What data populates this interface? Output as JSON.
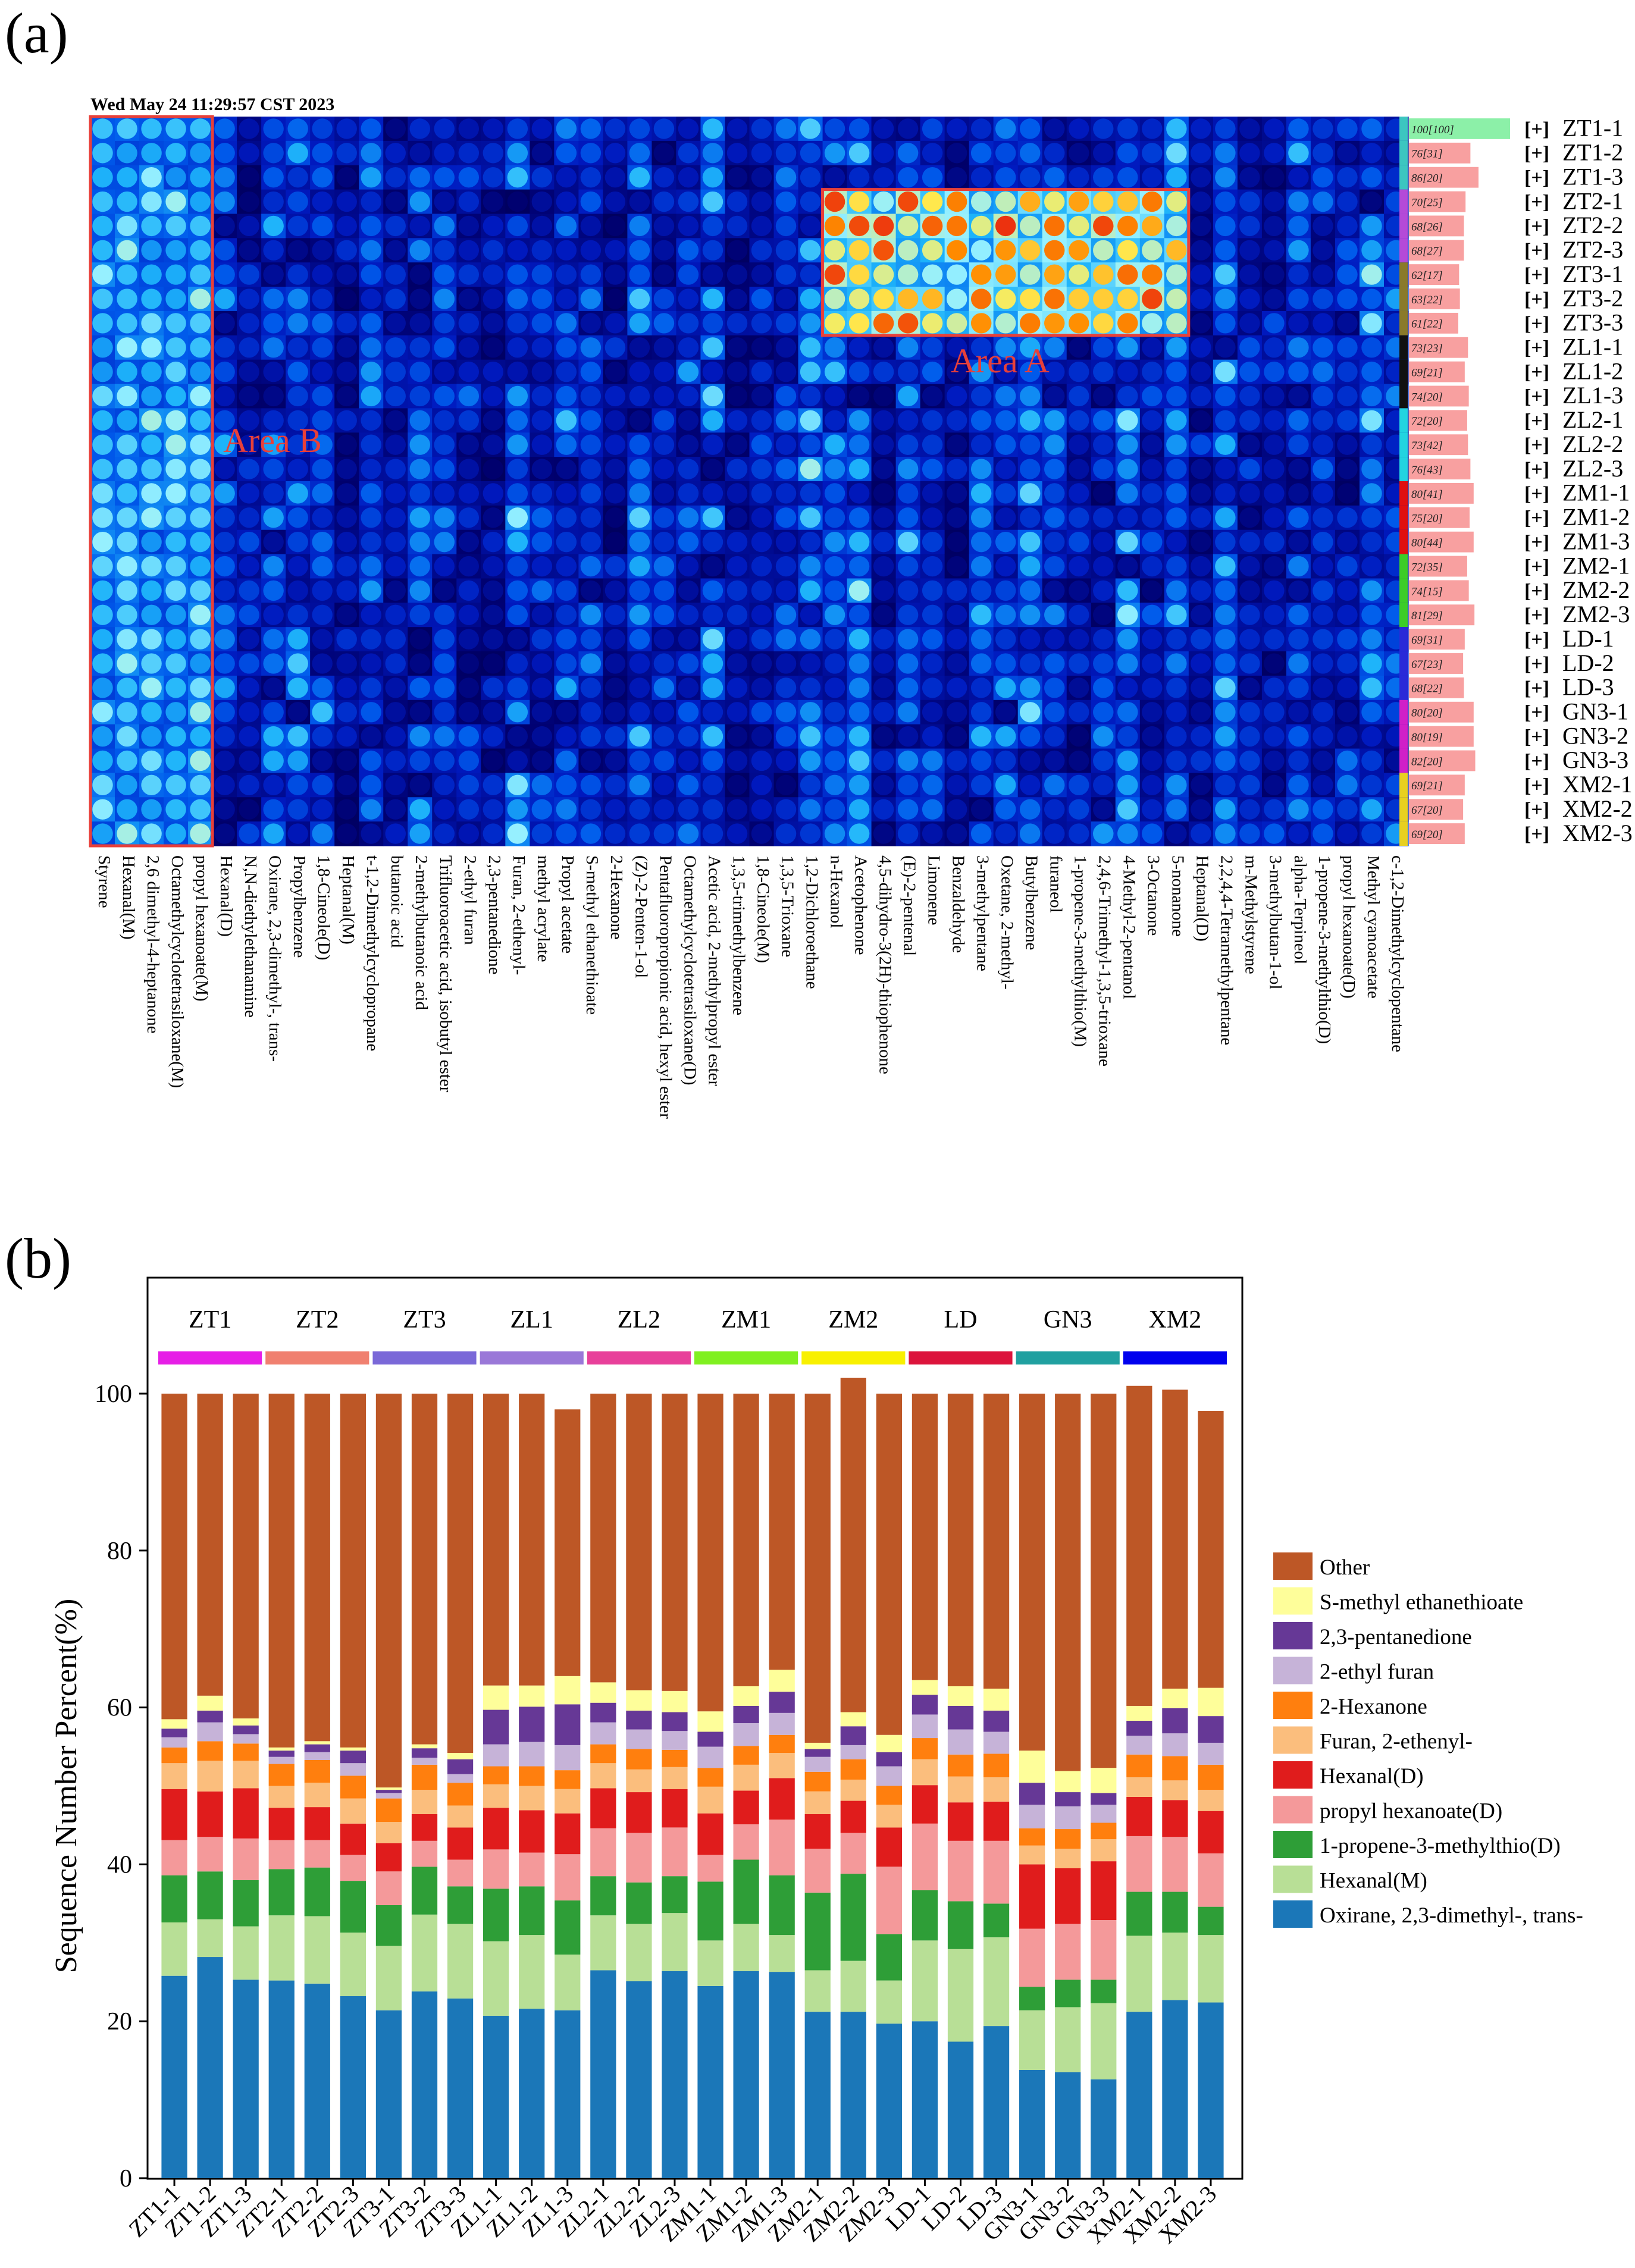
{
  "panel_a_label": "(a)",
  "panel_b_label": "(b)",
  "chart_data": [
    {
      "type": "heatmap",
      "timestamp": "Wed May 24 11:29:57 CST 2023",
      "compounds": [
        "Styrene",
        "Hexanal(M)",
        "2,6 dimethyl-4-heptanone",
        "Octamethylcyclotetrasiloxane(M)",
        "propyl hexanoate(M)",
        "Hexanal(D)",
        "N,N-diethylethanamine",
        "Oxirane, 2,3-dimethyl-, trans-",
        "Propylbenzene",
        "1,8-Cineole(D)",
        "Heptanal(M)",
        "t-1,2-Dimethylcyclopropane",
        "butanoic acid",
        "2-methylbutanoic acid",
        "Trifluoroacetic acid, isobutyl ester",
        "2-ethyl furan",
        "2,3-pentanedione",
        "Furan, 2-ethenyl-",
        "methyl acrylate",
        "Propyl acetate",
        "S-methyl ethanethioate",
        "2-Hexanone",
        "(Z)-2-Penten-1-ol",
        "Pentafluoropropionic acid, hexyl ester",
        "Octamethylcyclotetrasiloxane(D)",
        "Acetic acid, 2-methylpropyl ester",
        "1,3,5-trimethylbenzene",
        "1,8-Cineole(M)",
        "1,3,5-Trioxane",
        "1,2-Dichloroethane",
        "n-Hexanol",
        "Acetophenone",
        "4,5-dihydro-3(2H)-thiophenone",
        "(E)-2-pentenal",
        "Limonene",
        "Benzaldehyde",
        "3-methylpentane",
        "Oxetane, 2-methyl-",
        "Butylbenzene",
        "furaneol",
        "1-propene-3-methylthio(M)",
        "2,4,6-Trimethyl-1,3,5-trioxane",
        "4-Methyl-2-pentanol",
        "3-Octanone",
        "5-nonanone",
        "Heptanal(D)",
        "2,2,4,4-Tetramethylpentane",
        "m-Methylstyrene",
        "3-methylbutan-1-ol",
        "alpha-Terpineol",
        "1-propene-3-methylthio(D)",
        "propyl hexanoate(D)",
        "Methyl cyanoacetate",
        "c-1,2-Dimethylcyclopentane"
      ],
      "samples": [
        "ZT1-1",
        "ZT1-2",
        "ZT1-3",
        "ZT2-1",
        "ZT2-2",
        "ZT2-3",
        "ZT3-1",
        "ZT3-2",
        "ZT3-3",
        "ZL1-1",
        "ZL1-2",
        "ZL1-3",
        "ZL2-1",
        "ZL2-2",
        "ZL2-3",
        "ZM1-1",
        "ZM1-2",
        "ZM1-3",
        "ZM2-1",
        "ZM2-2",
        "ZM2-3",
        "LD-1",
        "LD-2",
        "LD-3",
        "GN3-1",
        "GN3-2",
        "GN3-3",
        "XM2-1",
        "XM2-2",
        "XM2-3"
      ],
      "sample_prefix": "[+]",
      "similarity": [
        "100[100]",
        "76[31]",
        "86[20]",
        "70[25]",
        "68[26]",
        "68[27]",
        "62[17]",
        "63[22]",
        "61[22]",
        "73[23]",
        "69[21]",
        "74[20]",
        "72[20]",
        "73[42]",
        "76[43]",
        "80[41]",
        "75[20]",
        "80[44]",
        "72[35]",
        "74[15]",
        "81[29]",
        "69[31]",
        "67[23]",
        "68[22]",
        "80[20]",
        "80[19]",
        "82[20]",
        "69[21]",
        "67[20]",
        "69[20]"
      ],
      "similarity_scores": [
        100,
        76,
        86,
        70,
        68,
        68,
        62,
        63,
        61,
        73,
        69,
        74,
        72,
        73,
        76,
        80,
        75,
        80,
        72,
        74,
        81,
        69,
        67,
        68,
        80,
        80,
        82,
        69,
        67,
        69
      ],
      "group_colors": [
        "#3cc6c0",
        "#3cc6c0",
        "#3cc6c0",
        "#b44ad8",
        "#b44ad8",
        "#b44ad8",
        "#8a7a2a",
        "#8a7a2a",
        "#8a7a2a",
        "#111111",
        "#111111",
        "#111111",
        "#22d4e0",
        "#22d4e0",
        "#22d4e0",
        "#e01010",
        "#e01010",
        "#e01010",
        "#3ccd28",
        "#3ccd28",
        "#3ccd28",
        "#2a2ad8",
        "#2a2ad8",
        "#2a2ad8",
        "#d020c8",
        "#d020c8",
        "#d020c8",
        "#e8d020",
        "#e8d020",
        "#e8d020"
      ],
      "areas": [
        {
          "label": "Area A",
          "compounds": [
            "n-Hexanol",
            "5-nonanone"
          ],
          "samples": [
            "ZT2-1",
            "ZT3-3"
          ]
        },
        {
          "label": "Area B",
          "compounds": [
            "Styrene",
            "propyl hexanoate(M)"
          ],
          "samples": [
            "ZT1-1",
            "XM2-3"
          ]
        }
      ]
    },
    {
      "type": "bar",
      "stacked": true,
      "ylabel": "Sequence Number Percent(%)",
      "ylim": [
        0,
        100
      ],
      "yticks": [
        0,
        20,
        40,
        60,
        80,
        100
      ],
      "grid": false,
      "legend_position": "right",
      "groups": [
        {
          "name": "ZT1",
          "color": "#e61ee6"
        },
        {
          "name": "ZT2",
          "color": "#f08070"
        },
        {
          "name": "ZT3",
          "color": "#7a68d8"
        },
        {
          "name": "ZL1",
          "color": "#9a78d8"
        },
        {
          "name": "ZL2",
          "color": "#e8409a"
        },
        {
          "name": "ZM1",
          "color": "#80f020"
        },
        {
          "name": "ZM2",
          "color": "#f8f000"
        },
        {
          "name": "LD",
          "color": "#dc143c"
        },
        {
          "name": "GN3",
          "color": "#20a0a0"
        },
        {
          "name": "XM2",
          "color": "#0000ee"
        }
      ],
      "categories": [
        "ZT1-1",
        "ZT1-2",
        "ZT1-3",
        "ZT2-1",
        "ZT2-2",
        "ZT2-3",
        "ZT3-1",
        "ZT3-2",
        "ZT3-3",
        "ZL1-1",
        "ZL1-2",
        "ZL1-3",
        "ZL2-1",
        "ZL2-2",
        "ZL2-3",
        "ZM1-1",
        "ZM1-2",
        "ZM1-3",
        "ZM2-1",
        "ZM2-2",
        "ZM2-3",
        "LD-1",
        "LD-2",
        "LD-3",
        "GN3-1",
        "GN3-2",
        "GN3-3",
        "XM2-1",
        "XM2-2",
        "XM2-3"
      ],
      "series": [
        {
          "name": "Oxirane, 2,3-dimethyl-, trans-",
          "color": "#1b77b8",
          "values": [
            25.8,
            28.2,
            25.3,
            25.2,
            24.8,
            23.2,
            21.4,
            23.8,
            22.9,
            20.7,
            21.6,
            21.4,
            26.5,
            25.1,
            26.4,
            24.5,
            26.4,
            26.3,
            21.2,
            21.2,
            19.7,
            20.0,
            17.4,
            19.4,
            13.8,
            13.5,
            12.6,
            21.2,
            22.7,
            22.4
          ]
        },
        {
          "name": "Hexanal(M)",
          "color": "#b8df96",
          "values": [
            6.8,
            4.8,
            6.8,
            8.3,
            8.6,
            8.1,
            8.2,
            9.8,
            9.5,
            9.5,
            9.4,
            7.1,
            7.0,
            7.3,
            7.4,
            5.8,
            6.0,
            4.7,
            5.3,
            6.5,
            5.5,
            10.3,
            11.8,
            11.3,
            7.6,
            8.3,
            9.7,
            9.7,
            8.6,
            8.6
          ]
        },
        {
          "name": "1-propene-3-methylthio(D)",
          "color": "#2e9e37",
          "values": [
            6.0,
            6.1,
            5.9,
            5.9,
            6.2,
            6.6,
            5.2,
            6.1,
            4.8,
            6.7,
            6.2,
            6.9,
            5.0,
            5.3,
            4.7,
            7.5,
            8.2,
            7.6,
            9.9,
            11.1,
            5.9,
            6.4,
            6.1,
            4.3,
            3.0,
            3.5,
            3.0,
            5.6,
            5.2,
            3.6
          ]
        },
        {
          "name": "propyl hexanoate(D)",
          "color": "#f4999a",
          "values": [
            4.5,
            4.4,
            5.3,
            3.7,
            3.5,
            3.3,
            4.3,
            3.3,
            3.4,
            5.0,
            4.3,
            5.9,
            6.1,
            6.3,
            6.2,
            3.4,
            4.5,
            7.1,
            5.6,
            5.2,
            8.6,
            8.5,
            7.7,
            8.0,
            7.4,
            7.1,
            7.6,
            7.1,
            7.0,
            6.8
          ]
        },
        {
          "name": "Hexanal(D)",
          "color": "#e01c1c",
          "values": [
            6.5,
            5.8,
            6.4,
            4.1,
            4.2,
            4.0,
            3.6,
            3.4,
            4.1,
            5.3,
            5.4,
            5.2,
            5.1,
            5.2,
            4.9,
            5.3,
            4.3,
            5.3,
            4.4,
            4.1,
            5.0,
            4.9,
            4.9,
            5.0,
            8.2,
            7.1,
            7.5,
            5.0,
            4.7,
            5.4
          ]
        },
        {
          "name": "Furan, 2-ethenyl-",
          "color": "#fbbe7d",
          "values": [
            3.3,
            3.9,
            3.5,
            2.8,
            3.1,
            3.2,
            2.7,
            3.1,
            2.8,
            3.0,
            3.1,
            3.1,
            3.2,
            2.9,
            2.8,
            3.4,
            3.3,
            3.2,
            2.9,
            2.7,
            2.9,
            3.3,
            3.3,
            3.1,
            2.4,
            2.5,
            2.8,
            2.5,
            2.5,
            2.7
          ]
        },
        {
          "name": "2-Hexanone",
          "color": "#ff7f0e",
          "values": [
            2.0,
            2.5,
            2.2,
            2.8,
            2.9,
            2.9,
            3.0,
            3.2,
            2.9,
            2.3,
            2.5,
            2.4,
            2.4,
            2.6,
            2.2,
            2.4,
            2.4,
            2.3,
            2.5,
            2.6,
            2.4,
            2.7,
            2.8,
            3.0,
            2.2,
            2.5,
            2.1,
            2.9,
            3.1,
            3.2
          ]
        },
        {
          "name": "2-ethyl furan",
          "color": "#c6b3d8",
          "values": [
            1.3,
            2.4,
            1.2,
            0.9,
            1.0,
            1.6,
            0.7,
            0.9,
            1.1,
            2.8,
            3.1,
            3.2,
            2.8,
            2.5,
            2.4,
            2.7,
            2.9,
            2.8,
            1.9,
            1.8,
            2.5,
            3.0,
            3.2,
            2.8,
            3.0,
            2.9,
            2.3,
            2.4,
            2.9,
            2.8
          ]
        },
        {
          "name": "2,3-pentanedione",
          "color": "#663896",
          "values": [
            1.1,
            1.5,
            1.1,
            0.8,
            1.0,
            1.6,
            0.4,
            1.2,
            1.9,
            4.4,
            4.5,
            5.2,
            2.5,
            2.4,
            2.4,
            1.9,
            2.2,
            2.7,
            1.0,
            2.4,
            1.8,
            2.5,
            3.0,
            2.7,
            2.8,
            1.8,
            1.5,
            1.9,
            3.2,
            3.4
          ]
        },
        {
          "name": "S-methyl ethanethioate",
          "color": "#fefe9a",
          "values": [
            1.2,
            1.9,
            0.9,
            0.4,
            0.4,
            0.4,
            0.3,
            0.5,
            0.8,
            3.1,
            2.7,
            3.6,
            2.6,
            2.6,
            2.7,
            2.6,
            2.5,
            2.8,
            0.8,
            1.8,
            2.2,
            1.9,
            2.5,
            2.8,
            4.1,
            2.7,
            3.2,
            1.9,
            2.5,
            3.6
          ]
        },
        {
          "name": "Other",
          "color": "#bd5726",
          "values": [
            41.5,
            38.5,
            41.4,
            45.1,
            44.3,
            45.1,
            50.2,
            44.7,
            45.8,
            37.2,
            37.2,
            34.0,
            36.8,
            37.8,
            37.9,
            40.5,
            37.3,
            35.2,
            44.5,
            42.6,
            43.5,
            36.5,
            37.3,
            37.6,
            45.5,
            48.1,
            47.7,
            40.8,
            38.1,
            35.3
          ]
        }
      ]
    }
  ]
}
